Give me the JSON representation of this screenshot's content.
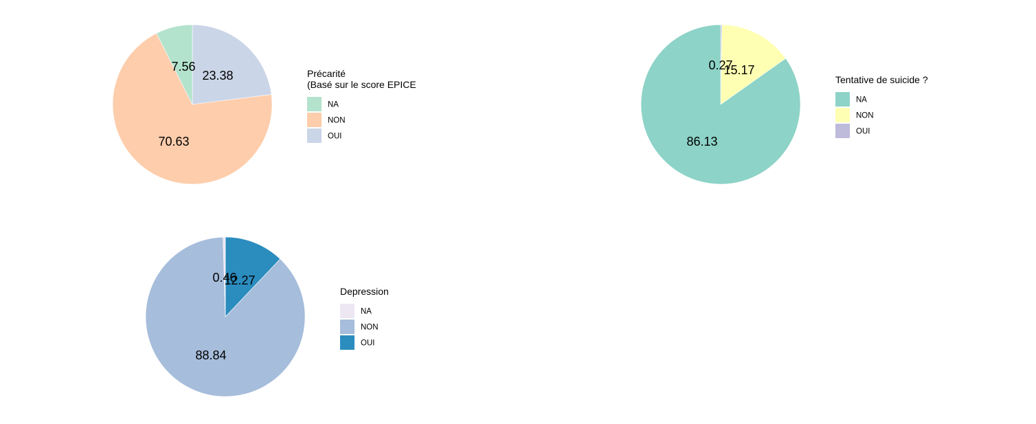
{
  "chart_data": [
    {
      "type": "pie",
      "legend_title": [
        "Précarité",
        " (Basé sur le score EPICE"
      ],
      "legend_placement": "right",
      "categories": [
        "NA",
        "NON",
        "OUI"
      ],
      "colors": [
        "#b3e2cd",
        "#fdcdac",
        "#cbd5e8"
      ],
      "values": [
        7.56,
        70.63,
        23.38
      ],
      "labels": [
        "7.56",
        "70.63",
        "23.38"
      ]
    },
    {
      "type": "pie",
      "legend_title": [
        "Tentative de suicide ?"
      ],
      "legend_placement": "right",
      "categories": [
        "NA",
        "NON",
        "OUI"
      ],
      "colors": [
        "#8dd3c7",
        "#ffffb3",
        "#bebada"
      ],
      "values": [
        86.13,
        15.17,
        0.27
      ],
      "labels": [
        "86.13",
        "15.17",
        "0.27"
      ]
    },
    {
      "type": "pie",
      "legend_title": [
        "Depression"
      ],
      "legend_placement": "right",
      "categories": [
        "NA",
        "NON",
        "OUI"
      ],
      "colors": [
        "#ece7f2",
        "#a6bddb",
        "#2b8cbe"
      ],
      "values": [
        0.46,
        88.84,
        12.27
      ],
      "labels": [
        "0.46",
        "88.84",
        "12.27"
      ]
    }
  ]
}
